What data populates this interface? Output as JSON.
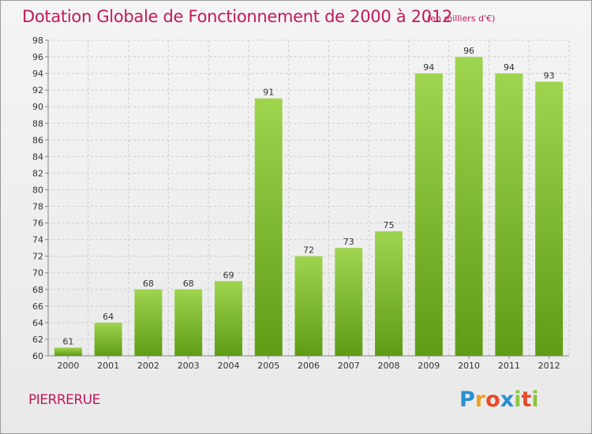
{
  "header": {
    "title": "Dotation Globale de Fonctionnement de 2000 à 2012",
    "unit": "(en milliers d'€)"
  },
  "footer": {
    "place": "PIERRERUE",
    "brand": "Proxiti"
  },
  "colors": {
    "title": "#c2185b",
    "bar_top": "#9fd44f",
    "bar_bottom": "#5f9c16",
    "grid": "#cccccc",
    "axis": "#888888"
  },
  "chart_data": {
    "type": "bar",
    "title": "Dotation Globale de Fonctionnement de 2000 à 2012",
    "xlabel": "",
    "ylabel": "",
    "categories": [
      "2000",
      "2001",
      "2002",
      "2003",
      "2004",
      "2005",
      "2006",
      "2007",
      "2008",
      "2009",
      "2010",
      "2011",
      "2012"
    ],
    "values": [
      61,
      64,
      68,
      68,
      69,
      91,
      72,
      73,
      75,
      94,
      96,
      94,
      93
    ],
    "data_labels": [
      "61",
      "64",
      "68",
      "68",
      "69",
      "91",
      "72",
      "73",
      "75",
      "94",
      "96",
      "94",
      "93"
    ],
    "ylim": [
      60,
      98
    ],
    "yticks": [
      60,
      62,
      64,
      66,
      68,
      70,
      72,
      74,
      76,
      78,
      80,
      82,
      84,
      86,
      88,
      90,
      92,
      94,
      96,
      98
    ],
    "grid": "dashed horizontal and vertical",
    "legend": "none"
  }
}
